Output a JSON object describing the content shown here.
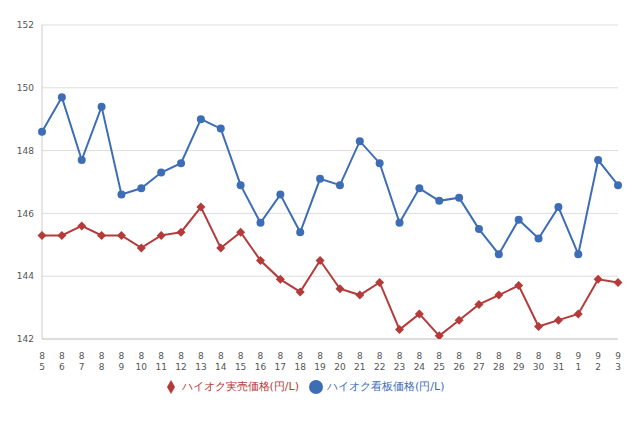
{
  "chart_data": {
    "type": "line",
    "categories": [
      "8\n5",
      "8\n6",
      "8\n7",
      "8\n8",
      "8\n9",
      "8\n10",
      "8\n11",
      "8\n12",
      "8\n13",
      "8\n14",
      "8\n15",
      "8\n16",
      "8\n17",
      "8\n18",
      "8\n19",
      "8\n20",
      "8\n21",
      "8\n22",
      "8\n23",
      "8\n24",
      "8\n25",
      "8\n26",
      "8\n27",
      "8\n28",
      "8\n29",
      "8\n30",
      "8\n31",
      "9\n1",
      "9\n2",
      "9\n3"
    ],
    "series": [
      {
        "name": "ハイオク看板価格(円/L)",
        "color": "#3d6db5",
        "marker": "circle",
        "values": [
          148.6,
          149.7,
          147.7,
          149.4,
          146.6,
          146.8,
          147.3,
          147.6,
          149.0,
          148.7,
          146.9,
          145.7,
          146.6,
          145.4,
          147.1,
          146.9,
          148.3,
          147.6,
          145.7,
          146.8,
          146.4,
          146.5,
          145.5,
          144.7,
          145.8,
          145.2,
          146.2,
          144.7,
          147.7,
          146.9
        ]
      },
      {
        "name": "ハイオク実売価格(円/L)",
        "color": "#b53a3a",
        "marker": "diamond",
        "values": [
          145.3,
          145.3,
          145.6,
          145.3,
          145.3,
          144.9,
          145.3,
          145.4,
          146.2,
          144.9,
          145.4,
          144.5,
          143.9,
          143.5,
          144.5,
          143.6,
          143.4,
          143.8,
          142.3,
          142.8,
          142.1,
          142.6,
          143.1,
          143.4,
          143.7,
          142.4,
          142.6,
          142.8,
          143.9,
          143.8
        ]
      }
    ],
    "ylim": [
      142,
      152
    ],
    "yticks": [
      142,
      144,
      146,
      148,
      150,
      152
    ],
    "grid": true,
    "legend": "bottom"
  }
}
